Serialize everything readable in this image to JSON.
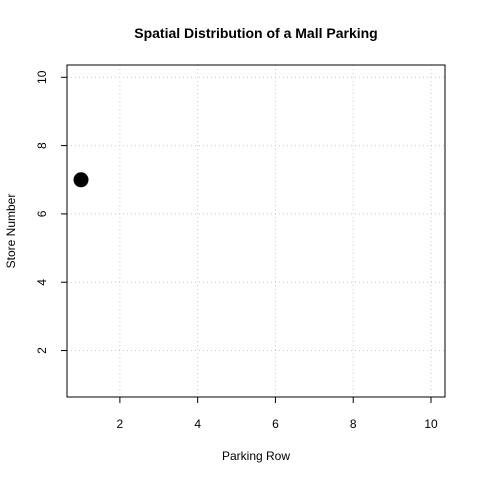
{
  "chart_data": {
    "type": "scatter",
    "title": "Spatial Distribution of a Mall Parking",
    "xlabel": "Parking Row",
    "ylabel": "Store Number",
    "xlim": [
      0.64,
      10.36
    ],
    "ylim": [
      0.64,
      10.36
    ],
    "xticks": [
      2,
      4,
      6,
      8,
      10
    ],
    "yticks": [
      2,
      4,
      6,
      8,
      10
    ],
    "grid": true,
    "legend": "none",
    "point_color": "#000000",
    "points": [
      {
        "x": 1,
        "y": 7
      }
    ]
  }
}
